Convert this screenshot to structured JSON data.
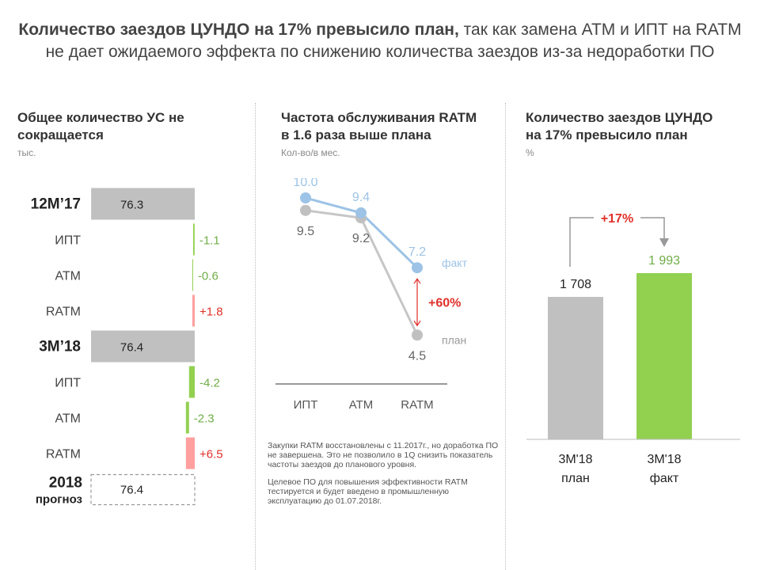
{
  "header": {
    "title_bold": "Количество заездов ЦУНДО на 17% превысило план,",
    "title_line1_rest": " так как замена АТМ и ИПТ на RATM",
    "title_line2": "не дает ожидаемого эффекта по снижению количества заездов из-за недоработки ПО"
  },
  "left": {
    "title_line1": "Общее количество УС не",
    "title_line2": "сокращается",
    "unit": "тыс."
  },
  "middle": {
    "title_line1": "Частота обслуживания RATM",
    "title_line2": "в 1.6 раза выше плана",
    "unit": "Кол-во/в мес.",
    "note1": "Закупки RATM восстановлены с 11.2017г., но доработка ПО не завершена. Это не позволило в 1Q снизить показатель частоты заездов до планового уровня.",
    "note2": "Целевое ПО для повышения эффективности RATM тестируется и будет введено в промышленную эксплуатацию до 01.07.2018г."
  },
  "right": {
    "title_line1": "Количество заездов ЦУНДО",
    "title_line2": "на 17% превысило план",
    "unit": "%"
  },
  "colors": {
    "gray": "#c0c0c0",
    "green": "#92d050",
    "pink": "#ff9f9f",
    "blue": "#9dc3e6",
    "red": "#e0302a",
    "green_text": "#70ad47"
  },
  "chart_data": [
    {
      "type": "bar",
      "subtype": "waterfall",
      "rows": [
        {
          "label": "12M’17",
          "kind": "total",
          "value": 76.3,
          "label_text": "76.3",
          "bold": true
        },
        {
          "label": "ИПТ",
          "kind": "delta",
          "value": -1.1,
          "label_text": "-1.1"
        },
        {
          "label": "АТМ",
          "kind": "delta",
          "value": -0.6,
          "label_text": "-0.6"
        },
        {
          "label": "RATM",
          "kind": "delta",
          "value": 1.8,
          "label_text": "+1.8"
        },
        {
          "label": "3M’18",
          "kind": "total",
          "value": 76.4,
          "label_text": "76.4",
          "bold": true
        },
        {
          "label": "ИПТ",
          "kind": "delta",
          "value": -4.2,
          "label_text": "-4.2"
        },
        {
          "label": "АТМ",
          "kind": "delta",
          "value": -2.3,
          "label_text": "-2.3"
        },
        {
          "label": "RATM",
          "kind": "delta",
          "value": 6.5,
          "label_text": "+6.5"
        },
        {
          "label": "2018",
          "label2": "прогноз",
          "kind": "forecast",
          "value": 76.4,
          "label_text": "76.4",
          "bold": true
        }
      ]
    },
    {
      "type": "line",
      "categories": [
        "ИПТ",
        "АТМ",
        "RATM"
      ],
      "series": [
        {
          "name": "факт",
          "values": [
            10.0,
            9.4,
            7.2
          ],
          "labels": [
            "10.0",
            "9.4",
            "7.2"
          ]
        },
        {
          "name": "план",
          "values": [
            9.5,
            9.2,
            4.5
          ],
          "labels": [
            "9.5",
            "9.2",
            "4.5"
          ]
        }
      ],
      "annotation": "+60%"
    },
    {
      "type": "bar",
      "categories": [
        "3M'18 план",
        "3M'18 факт"
      ],
      "category_lines": [
        [
          "3M'18",
          "план"
        ],
        [
          "3M'18",
          "факт"
        ]
      ],
      "values": [
        1708,
        1993
      ],
      "value_labels": [
        "1 708",
        "1 993"
      ],
      "annotation": "+17%"
    }
  ]
}
